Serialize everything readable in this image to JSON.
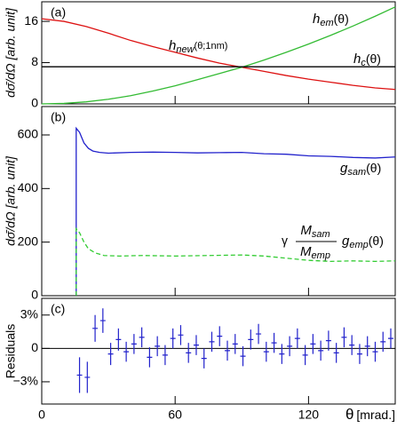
{
  "chart_data": [
    {
      "type": "line",
      "panel_label": "(a)",
      "ylabel": "dσ̄/dΩ [arb. unit]",
      "xlim": [
        0,
        159
      ],
      "ylim": [
        0,
        19.8
      ],
      "yticks": [
        0,
        8,
        16
      ],
      "series": [
        {
          "label": {
            "text": "h",
            "sub": "new",
            "tail": "(θ;1nm)"
          },
          "color": "#dd1111",
          "x": [
            0,
            10,
            20,
            30,
            40,
            50,
            60,
            70,
            80,
            90,
            100,
            110,
            120,
            130,
            140,
            150,
            159
          ],
          "values": [
            16.5,
            16.0,
            15.0,
            13.7,
            12.3,
            11.1,
            10.0,
            8.9,
            7.9,
            7.1,
            6.3,
            5.5,
            4.8,
            4.2,
            3.6,
            3.1,
            2.8
          ]
        },
        {
          "label": {
            "text": "h",
            "sub": "em",
            "tail": "(θ)"
          },
          "color": "#33bb33",
          "x": [
            0,
            10,
            20,
            30,
            40,
            50,
            60,
            70,
            80,
            90,
            100,
            110,
            120,
            130,
            140,
            150,
            159
          ],
          "values": [
            0,
            0.1,
            0.4,
            0.9,
            1.6,
            2.5,
            3.5,
            4.7,
            5.9,
            7.1,
            8.5,
            10.0,
            11.6,
            13.3,
            15.1,
            17.0,
            18.8
          ]
        },
        {
          "label": {
            "text": "h",
            "sub": "c",
            "tail": "(θ)"
          },
          "color": "#000000",
          "x": [
            0,
            159
          ],
          "values": [
            7.2,
            7.2
          ]
        }
      ]
    },
    {
      "type": "line",
      "panel_label": "(b)",
      "ylabel": "dσ̄/dΩ [arb. unit]",
      "xlim": [
        0,
        159
      ],
      "ylim": [
        0,
        706
      ],
      "yticks": [
        0,
        200,
        400,
        600
      ],
      "series": [
        {
          "label": {
            "text": "g",
            "sub": "sam",
            "tail": "(θ)"
          },
          "color": "#2222cc",
          "x": [
            15.5,
            15.5,
            17,
            19,
            21,
            23,
            26,
            30,
            40,
            50,
            60,
            70,
            80,
            90,
            100,
            110,
            120,
            130,
            140,
            150,
            159
          ],
          "values": [
            0,
            625,
            610,
            570,
            550,
            540,
            535,
            532,
            535,
            536,
            535,
            533,
            534,
            535,
            530,
            528,
            522,
            520,
            516,
            514,
            518
          ]
        },
        {
          "label": {
            "prefix": "γ",
            "num": {
              "text": "M",
              "sub": "sam"
            },
            "den": {
              "text": "M",
              "sub": "emp"
            },
            "text": "g",
            "sub": "emp",
            "tail": "(θ)"
          },
          "color": "#33cc33",
          "dashed": true,
          "x": [
            15.5,
            15.5,
            17,
            19,
            21,
            24,
            28,
            35,
            45,
            60,
            75,
            90,
            100,
            110,
            120,
            130,
            140,
            150,
            159
          ],
          "values": [
            0,
            250,
            235,
            200,
            175,
            160,
            150,
            148,
            150,
            148,
            150,
            152,
            148,
            140,
            132,
            128,
            130,
            128,
            130
          ]
        }
      ]
    },
    {
      "type": "errorbar",
      "panel_label": "(c)",
      "ylabel": "Residuals",
      "xlabel": {
        "text": "θ",
        "unit": "[mrad.]"
      },
      "xlim": [
        0,
        159
      ],
      "ylim": [
        -5,
        4.5
      ],
      "yticks": [
        {
          "value": -3,
          "label": "−3%"
        },
        0,
        {
          "value": 3,
          "label": "3%"
        }
      ],
      "xticks": [
        0,
        60,
        120
      ],
      "color": "#2222cc",
      "x": [
        17,
        20.5,
        24,
        27.5,
        31,
        34.5,
        38,
        41.5,
        45,
        48.5,
        52,
        55.5,
        59,
        62.5,
        66,
        69.5,
        73,
        76.5,
        80,
        83.5,
        87,
        90.5,
        94,
        97.5,
        101,
        104.5,
        108,
        111.5,
        115,
        118.5,
        122,
        125.5,
        129,
        132.5,
        136,
        139.5,
        143,
        146.5,
        150,
        153.5,
        157
      ],
      "values": [
        -2.4,
        -2.6,
        1.8,
        2.5,
        -0.5,
        0.8,
        -0.3,
        0.4,
        1.0,
        -0.8,
        0.2,
        -0.6,
        0.9,
        1.2,
        -0.4,
        0.3,
        -0.9,
        0.6,
        1.1,
        -0.2,
        0.4,
        -0.7,
        0.8,
        1.3,
        -0.3,
        0.5,
        -0.5,
        0.2,
        0.9,
        -0.6,
        0.4,
        -0.2,
        0.7,
        -0.4,
        1.0,
        0.3,
        -0.5,
        0.2,
        -0.3,
        0.6,
        0.9
      ],
      "errors": [
        1.6,
        1.4,
        1.2,
        1.1,
        1.0,
        1.0,
        0.9,
        0.9,
        0.9,
        0.9,
        0.9,
        0.9,
        0.9,
        0.9,
        0.9,
        0.9,
        0.9,
        0.9,
        0.9,
        0.9,
        0.9,
        0.9,
        0.9,
        0.9,
        0.9,
        0.9,
        0.9,
        0.9,
        0.9,
        0.9,
        0.9,
        0.9,
        0.9,
        0.9,
        0.9,
        0.9,
        0.9,
        0.9,
        0.9,
        0.9,
        0.9
      ]
    }
  ]
}
